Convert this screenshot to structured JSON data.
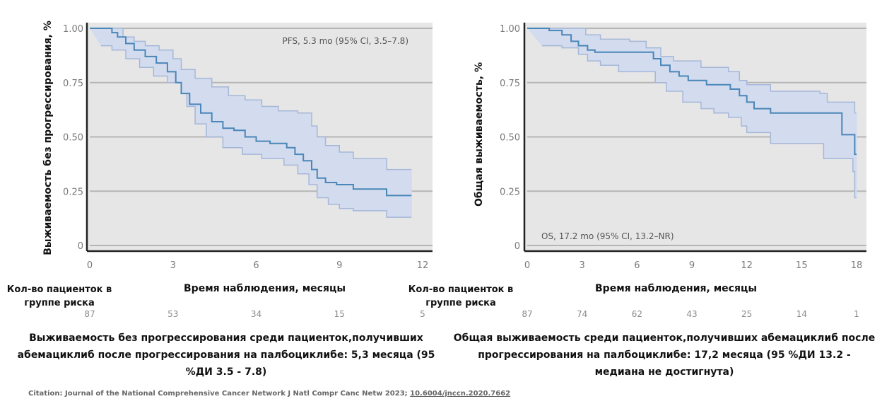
{
  "chart_data": [
    {
      "type": "line",
      "subtype": "kaplan-meier-step",
      "title": "",
      "ylabel": "Выживаемость без прогрессирования, %",
      "xlabel": "Время наблюдения, месяцы",
      "xlim": [
        0,
        12
      ],
      "ylim": [
        0,
        1
      ],
      "x_ticks": [
        "0",
        "3",
        "6",
        "9",
        "12"
      ],
      "y_ticks": [
        "0",
        "0.25",
        "0.50",
        "0.75",
        "1.00"
      ],
      "grid": true,
      "annotation": "PFS, 5.3 mo (95% CI, 3.5–7.8)",
      "annotation_position": "top-right",
      "series": [
        {
          "name": "PFS",
          "color": "#4a86b8",
          "points": [
            [
              0,
              1.0
            ],
            [
              0.5,
              1.0
            ],
            [
              0.8,
              0.98
            ],
            [
              1.0,
              0.96
            ],
            [
              1.3,
              0.93
            ],
            [
              1.6,
              0.9
            ],
            [
              2.0,
              0.87
            ],
            [
              2.4,
              0.84
            ],
            [
              2.8,
              0.8
            ],
            [
              3.1,
              0.75
            ],
            [
              3.3,
              0.7
            ],
            [
              3.6,
              0.65
            ],
            [
              4.0,
              0.61
            ],
            [
              4.4,
              0.57
            ],
            [
              4.8,
              0.54
            ],
            [
              5.2,
              0.53
            ],
            [
              5.6,
              0.5
            ],
            [
              6.0,
              0.48
            ],
            [
              6.5,
              0.47
            ],
            [
              7.1,
              0.45
            ],
            [
              7.4,
              0.42
            ],
            [
              7.7,
              0.39
            ],
            [
              8.0,
              0.35
            ],
            [
              8.2,
              0.31
            ],
            [
              8.5,
              0.29
            ],
            [
              8.9,
              0.28
            ],
            [
              9.5,
              0.26
            ],
            [
              10.7,
              0.23
            ],
            [
              11.6,
              0.23
            ]
          ]
        },
        {
          "name": "95% CI upper",
          "color": "#9fb3d6",
          "points": [
            [
              0,
              1.0
            ],
            [
              0.8,
              1.0
            ],
            [
              1.2,
              0.96
            ],
            [
              1.6,
              0.94
            ],
            [
              2.0,
              0.92
            ],
            [
              2.5,
              0.9
            ],
            [
              3.0,
              0.86
            ],
            [
              3.3,
              0.81
            ],
            [
              3.8,
              0.77
            ],
            [
              4.4,
              0.73
            ],
            [
              5.0,
              0.69
            ],
            [
              5.6,
              0.67
            ],
            [
              6.2,
              0.64
            ],
            [
              6.8,
              0.62
            ],
            [
              7.5,
              0.61
            ],
            [
              8.0,
              0.55
            ],
            [
              8.2,
              0.5
            ],
            [
              8.5,
              0.46
            ],
            [
              9.0,
              0.43
            ],
            [
              9.5,
              0.4
            ],
            [
              10.7,
              0.35
            ],
            [
              11.6,
              0.35
            ]
          ]
        },
        {
          "name": "95% CI lower",
          "color": "#9fb3d6",
          "points": [
            [
              0.4,
              0.92
            ],
            [
              0.8,
              0.9
            ],
            [
              1.3,
              0.86
            ],
            [
              1.8,
              0.82
            ],
            [
              2.3,
              0.78
            ],
            [
              2.8,
              0.75
            ],
            [
              3.3,
              0.7
            ],
            [
              3.5,
              0.64
            ],
            [
              3.8,
              0.56
            ],
            [
              4.2,
              0.5
            ],
            [
              4.8,
              0.45
            ],
            [
              5.5,
              0.42
            ],
            [
              6.2,
              0.4
            ],
            [
              7.0,
              0.37
            ],
            [
              7.5,
              0.33
            ],
            [
              7.9,
              0.28
            ],
            [
              8.2,
              0.22
            ],
            [
              8.6,
              0.19
            ],
            [
              9.0,
              0.17
            ],
            [
              9.5,
              0.16
            ],
            [
              10.7,
              0.13
            ],
            [
              11.6,
              0.13
            ]
          ]
        }
      ],
      "risk_table": {
        "label": "Кол-во пациенток в группе риска",
        "times": [
          "0",
          "3",
          "6",
          "9",
          "12"
        ],
        "values": [
          "87",
          "53",
          "34",
          "15",
          "5"
        ]
      }
    },
    {
      "type": "line",
      "subtype": "kaplan-meier-step",
      "title": "",
      "ylabel": "Общая выживаемость, %",
      "xlabel": "Время наблюдения, месяцы",
      "xlim": [
        0,
        18
      ],
      "ylim": [
        0,
        1
      ],
      "x_ticks": [
        "0",
        "3",
        "6",
        "9",
        "12",
        "15",
        "18"
      ],
      "y_ticks": [
        "0",
        "0.25",
        "0.50",
        "0.75",
        "1.00"
      ],
      "grid": true,
      "annotation": "OS, 17.2 mo (95% CI, 13.2–NR)",
      "annotation_position": "bottom-left",
      "series": [
        {
          "name": "OS",
          "color": "#4a86b8",
          "points": [
            [
              0,
              1.0
            ],
            [
              0.8,
              1.0
            ],
            [
              1.2,
              0.99
            ],
            [
              1.9,
              0.97
            ],
            [
              2.4,
              0.94
            ],
            [
              2.8,
              0.92
            ],
            [
              3.3,
              0.9
            ],
            [
              3.7,
              0.89
            ],
            [
              6.5,
              0.89
            ],
            [
              6.9,
              0.86
            ],
            [
              7.3,
              0.83
            ],
            [
              7.8,
              0.8
            ],
            [
              8.3,
              0.78
            ],
            [
              8.8,
              0.76
            ],
            [
              9.8,
              0.74
            ],
            [
              11.1,
              0.72
            ],
            [
              11.6,
              0.69
            ],
            [
              12.0,
              0.66
            ],
            [
              12.4,
              0.63
            ],
            [
              13.2,
              0.63
            ],
            [
              13.3,
              0.61
            ],
            [
              16.4,
              0.61
            ],
            [
              17.2,
              0.51
            ],
            [
              17.8,
              0.51
            ],
            [
              17.9,
              0.42
            ],
            [
              18.0,
              0.42
            ]
          ]
        },
        {
          "name": "95% CI upper",
          "color": "#9fb3d6",
          "points": [
            [
              0,
              1.0
            ],
            [
              2.4,
              1.0
            ],
            [
              3.2,
              0.97
            ],
            [
              4.0,
              0.95
            ],
            [
              5.6,
              0.94
            ],
            [
              6.5,
              0.91
            ],
            [
              7.3,
              0.87
            ],
            [
              8.0,
              0.85
            ],
            [
              9.5,
              0.82
            ],
            [
              11.0,
              0.8
            ],
            [
              11.6,
              0.76
            ],
            [
              12.0,
              0.74
            ],
            [
              13.2,
              0.74
            ],
            [
              13.3,
              0.71
            ],
            [
              16.0,
              0.7
            ],
            [
              16.4,
              0.66
            ],
            [
              17.8,
              0.66
            ],
            [
              17.9,
              0.61
            ],
            [
              18.0,
              0.61
            ]
          ]
        },
        {
          "name": "95% CI lower",
          "color": "#9fb3d6",
          "points": [
            [
              0.8,
              0.92
            ],
            [
              1.9,
              0.91
            ],
            [
              2.8,
              0.88
            ],
            [
              3.3,
              0.85
            ],
            [
              4.0,
              0.83
            ],
            [
              5.0,
              0.8
            ],
            [
              6.5,
              0.8
            ],
            [
              7.0,
              0.75
            ],
            [
              7.6,
              0.71
            ],
            [
              8.5,
              0.66
            ],
            [
              9.5,
              0.63
            ],
            [
              10.2,
              0.61
            ],
            [
              11.0,
              0.59
            ],
            [
              11.7,
              0.55
            ],
            [
              12.0,
              0.52
            ],
            [
              13.2,
              0.52
            ],
            [
              13.3,
              0.47
            ],
            [
              16.0,
              0.47
            ],
            [
              16.2,
              0.4
            ],
            [
              17.8,
              0.34
            ],
            [
              17.9,
              0.22
            ],
            [
              18.0,
              0.22
            ]
          ]
        }
      ],
      "risk_table": {
        "label": "Кол-во пациенток в группе риска",
        "times": [
          "0",
          "3",
          "6",
          "9",
          "12",
          "15",
          "18"
        ],
        "values": [
          "87",
          "74",
          "62",
          "43",
          "25",
          "14",
          "1"
        ]
      }
    }
  ],
  "captions": {
    "pfs": "Выживаемость без прогрессирования среди пациенток,получивших абемациклиб после прогрессирования на палбоциклибе: 5,3 месяца (95 %ДИ 3.5 - 7.8)",
    "os": "Общая выживаемость среди пациенток,получивших абемациклиб после прогрессирования на палбоциклибе: 17,2 месяца (95 %ДИ 13.2 - медиана не достигнута)"
  },
  "citation": {
    "text": "Citation: Journal of the National Comprehensive Cancer Network J Natl Compr Canc Netw 2023; ",
    "link": "10.6004/jnccn.2020.7662"
  },
  "colors": {
    "plot_bg": "#e6e6e6",
    "ci_fill": "#d3dcee",
    "ci_line": "#a5b7d9",
    "km_line": "#4a86b8",
    "grid": "#b5b5b5",
    "axis": "#222222"
  }
}
